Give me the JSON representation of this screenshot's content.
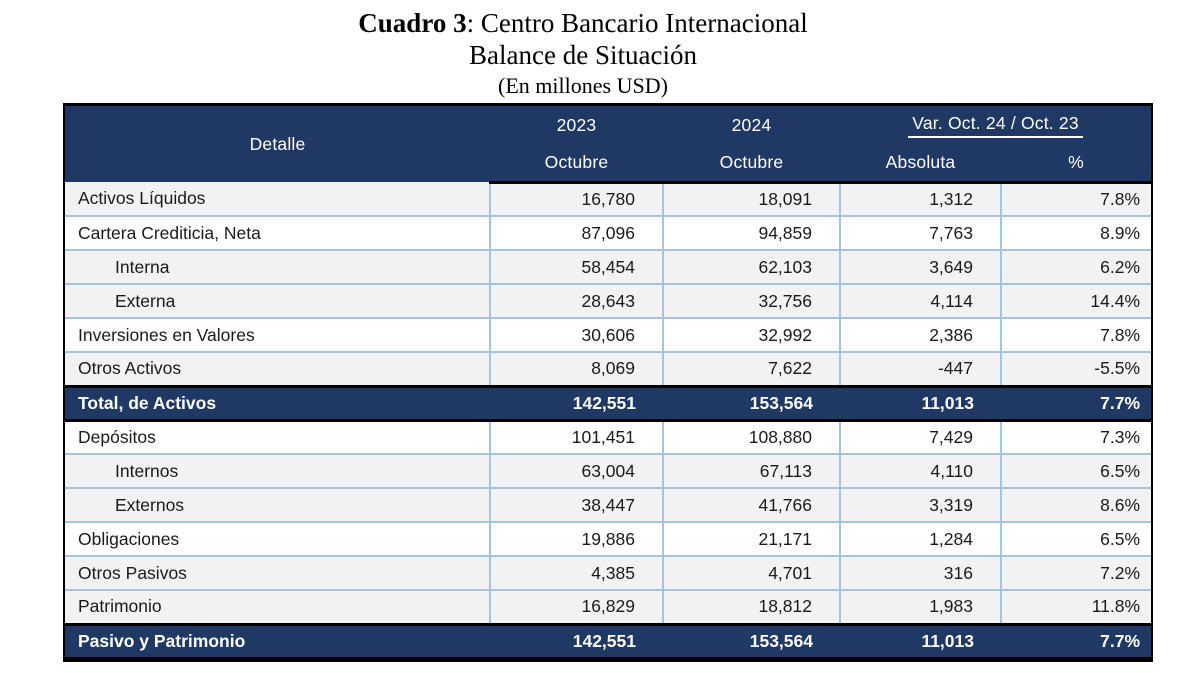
{
  "title": {
    "bold": "Cuadro 3",
    "rest": ": Centro Bancario Internacional",
    "subtitle": "Balance de Situación",
    "units": "(En millones USD)"
  },
  "table": {
    "header": {
      "detalle": "Detalle",
      "y2023": "2023",
      "y2024": "2024",
      "m2023": "Octubre",
      "m2024": "Octubre",
      "var_title": "Var. Oct. 24 / Oct. 23",
      "absoluta": "Absoluta",
      "pct": "%"
    },
    "rows": [
      {
        "label": "Activos Líquidos",
        "v2023": "16,780",
        "v2024": "18,091",
        "abs": "1,312",
        "pct": "7.8%",
        "variant": "gray",
        "indent": false
      },
      {
        "label": "Cartera Crediticia, Neta",
        "v2023": "87,096",
        "v2024": "94,859",
        "abs": "7,763",
        "pct": "8.9%",
        "variant": "white",
        "indent": false
      },
      {
        "label": "Interna",
        "v2023": "58,454",
        "v2024": "62,103",
        "abs": "3,649",
        "pct": "6.2%",
        "variant": "gray",
        "indent": true
      },
      {
        "label": "Externa",
        "v2023": "28,643",
        "v2024": "32,756",
        "abs": "4,114",
        "pct": "14.4%",
        "variant": "gray",
        "indent": true
      },
      {
        "label": "Inversiones en Valores",
        "v2023": "30,606",
        "v2024": "32,992",
        "abs": "2,386",
        "pct": "7.8%",
        "variant": "white",
        "indent": false
      },
      {
        "label": "Otros Activos",
        "v2023": "8,069",
        "v2024": "7,622",
        "abs": "-447",
        "pct": "-5.5%",
        "variant": "gray",
        "indent": false
      },
      {
        "label": "Total, de Activos",
        "v2023": "142,551",
        "v2024": "153,564",
        "abs": "11,013",
        "pct": "7.7%",
        "variant": "total",
        "indent": false
      },
      {
        "label": "Depósitos",
        "v2023": "101,451",
        "v2024": "108,880",
        "abs": "7,429",
        "pct": "7.3%",
        "variant": "white",
        "indent": false
      },
      {
        "label": "Internos",
        "v2023": "63,004",
        "v2024": "67,113",
        "abs": "4,110",
        "pct": "6.5%",
        "variant": "gray",
        "indent": true
      },
      {
        "label": "Externos",
        "v2023": "38,447",
        "v2024": "41,766",
        "abs": "3,319",
        "pct": "8.6%",
        "variant": "gray",
        "indent": true
      },
      {
        "label": "Obligaciones",
        "v2023": "19,886",
        "v2024": "21,171",
        "abs": "1,284",
        "pct": "6.5%",
        "variant": "white",
        "indent": false
      },
      {
        "label": "Otros Pasivos",
        "v2023": "4,385",
        "v2024": "4,701",
        "abs": "316",
        "pct": "7.2%",
        "variant": "gray",
        "indent": false
      },
      {
        "label": "Patrimonio",
        "v2023": "16,829",
        "v2024": "18,812",
        "abs": "1,983",
        "pct": "11.8%",
        "variant": "gray",
        "indent": false
      },
      {
        "label": "Pasivo y Patrimonio",
        "v2023": "142,551",
        "v2024": "153,564",
        "abs": "11,013",
        "pct": "7.7%",
        "variant": "total",
        "indent": false
      }
    ]
  },
  "colors": {
    "header_navy": "#1F3864",
    "grid_blue": "#A3C4E0",
    "row_gray": "#F2F2F2",
    "row_white": "#FFFFFF",
    "outer_border": "#000000",
    "header_text": "#FFFFFF",
    "body_text": "#1A1A1A"
  }
}
